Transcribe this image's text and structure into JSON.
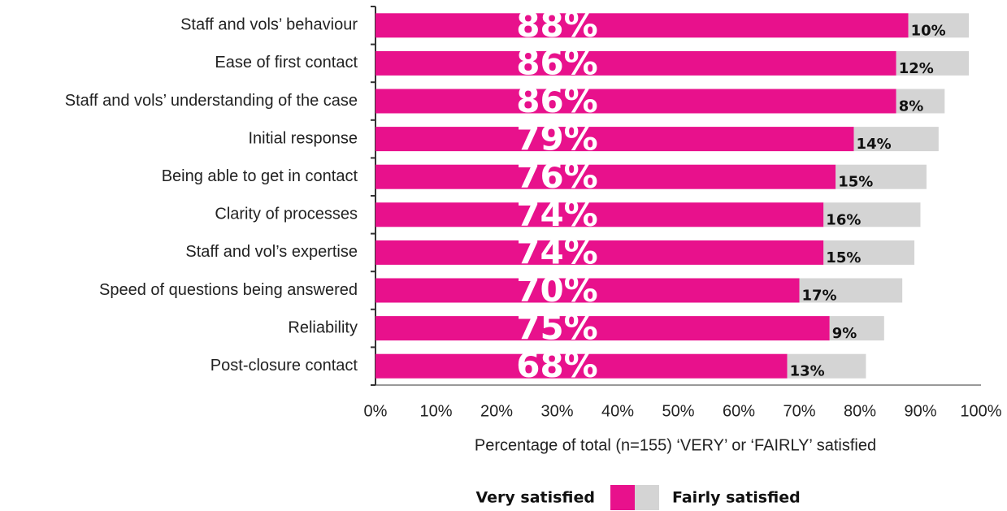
{
  "chart_data": {
    "type": "stacked-bar-horizontal",
    "x_label": "Percentage of total (n=155) ‘VERY’ or ‘FAIRLY’ satisfied",
    "categories": [
      "Staff and vols’ behaviour",
      "Ease of first contact",
      "Staff and vols’ understanding of the case",
      "Initial response",
      "Being able to get in contact",
      "Clarity of processes",
      "Staff and vol’s expertise",
      "Speed of questions being answered",
      "Reliability",
      "Post-closure contact"
    ],
    "series": [
      {
        "name": "Very satisfied",
        "color": "#e8118c",
        "values": [
          88,
          86,
          86,
          79,
          76,
          74,
          74,
          70,
          75,
          68
        ],
        "value_labels": [
          "88%",
          "86%",
          "86%",
          "79%",
          "76%",
          "74%",
          "74%",
          "70%",
          "75%",
          "68%"
        ]
      },
      {
        "name": "Fairly satisfied",
        "color": "#d4d4d4",
        "values": [
          10,
          12,
          8,
          14,
          15,
          16,
          15,
          17,
          9,
          13
        ],
        "value_labels": [
          "10%",
          "12%",
          "8%",
          "14%",
          "15%",
          "16%",
          "15%",
          "17%",
          "9%",
          "13%"
        ]
      }
    ],
    "xlim": [
      0,
      100
    ],
    "xticks": [
      {
        "value": 0,
        "label": "0%"
      },
      {
        "value": 10,
        "label": "10%"
      },
      {
        "value": 20,
        "label": "20%"
      },
      {
        "value": 30,
        "label": "30%"
      },
      {
        "value": 40,
        "label": "40%"
      },
      {
        "value": 50,
        "label": "50%"
      },
      {
        "value": 60,
        "label": "60%"
      },
      {
        "value": 70,
        "label": "70%"
      },
      {
        "value": 80,
        "label": "80%"
      },
      {
        "value": 90,
        "label": "90%"
      },
      {
        "value": 100,
        "label": "100%"
      }
    ],
    "legend": "bottom"
  }
}
